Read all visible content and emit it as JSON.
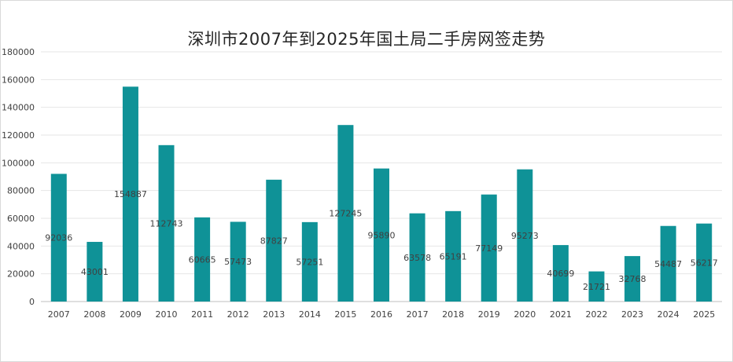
{
  "chart_data": {
    "type": "bar",
    "title": "深圳市2007年到2025年国土局二手房网签走势",
    "xlabel": "",
    "ylabel": "",
    "ylim": [
      0,
      180000
    ],
    "yticks": [
      "0",
      "20000",
      "40000",
      "60000",
      "80000",
      "100000",
      "120000",
      "140000",
      "160000",
      "180000"
    ],
    "grid": true,
    "legend": "none",
    "bar_color": "#0f9297",
    "categories": [
      "2007",
      "2008",
      "2009",
      "2010",
      "2011",
      "2012",
      "2013",
      "2014",
      "2015",
      "2016",
      "2017",
      "2018",
      "2019",
      "2020",
      "2021",
      "2022",
      "2023",
      "2024",
      "2025"
    ],
    "values": [
      92036,
      43001,
      154887,
      112743,
      60665,
      57473,
      87827,
      57251,
      127245,
      95890,
      63578,
      65191,
      77149,
      95273,
      40699,
      21721,
      32768,
      54487,
      56217
    ],
    "data_labels": [
      "92036",
      "43001",
      "154887",
      "112743",
      "60665",
      "57473",
      "87827",
      "57251",
      "127245",
      "95890",
      "63578",
      "65191",
      "77149",
      "95273",
      "40699",
      "21721",
      "32768",
      "54487",
      "56217"
    ]
  }
}
